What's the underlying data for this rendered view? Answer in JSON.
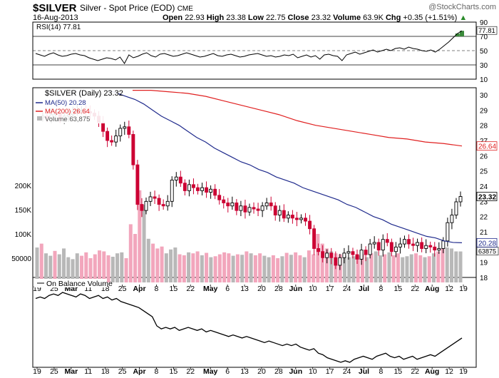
{
  "header": {
    "symbol": "$SILVER",
    "name": "Silver - Spot Price (EOD)",
    "exchange": "CME",
    "credit": "@StockCharts.com",
    "date": "16-Aug-2013",
    "open_label": "Open",
    "open": "22.93",
    "high_label": "High",
    "high": "23.38",
    "low_label": "Low",
    "low": "22.75",
    "close_label": "Close",
    "close": "23.32",
    "volume_label": "Volume",
    "volume": "63.9K",
    "chg_label": "Chg",
    "chg": "+0.35 (+1.51%)",
    "chg_arrow": "▲"
  },
  "colors": {
    "up": "#000000",
    "down": "#cc0033",
    "ma50": "#1f2a8c",
    "ma200": "#e02020",
    "volume_up": "#b8b8b8",
    "volume_down": "#f2a6bc",
    "rsi_fill_high": "#3a8a3a",
    "rsi_fill_low": "#7a4040",
    "grid": "#dddddd"
  },
  "panels": {
    "rsi_label": "RSI(14) 77.81",
    "main_label": "$SILVER (Daily) 23.32",
    "ma50_label": "MA(50) 20.28",
    "ma200_label": "MA(200) 26.64",
    "volume_label": "Volume 63,875",
    "obv_label": "On Balance Volume"
  },
  "x_axis_labels": [
    "19",
    "25",
    "Mar",
    "11",
    "18",
    "25",
    "Apr",
    "8",
    "15",
    "22",
    "May",
    "6",
    "13",
    "20",
    "28",
    "Jun",
    "10",
    "17",
    "24",
    "Jul",
    "8",
    "15",
    "22",
    "Aug",
    "12",
    "19"
  ],
  "chart_data": [
    {
      "type": "line",
      "name": "RSI(14)",
      "ylim": [
        10,
        90
      ],
      "y_ticks": [
        10,
        30,
        50,
        70,
        90
      ],
      "reference_lines": [
        30,
        50,
        70
      ],
      "current_value": 77.81,
      "values": [
        46,
        44,
        42,
        45,
        47,
        44,
        42,
        43,
        45,
        46,
        44,
        43,
        40,
        38,
        36,
        38,
        40,
        39,
        37,
        41,
        32,
        44,
        40,
        42,
        45,
        47,
        43,
        41,
        45,
        46,
        44,
        42,
        43,
        45,
        47,
        45,
        43,
        41,
        42,
        44,
        46,
        43,
        42,
        44,
        45,
        43,
        41,
        42,
        44,
        45,
        46,
        44,
        42,
        43,
        41,
        42,
        44,
        43,
        45,
        40,
        42,
        44,
        41,
        43,
        38,
        44,
        45,
        43,
        42,
        36,
        44,
        46,
        48,
        45,
        47,
        49,
        51,
        48,
        50,
        52,
        50,
        53,
        54,
        52,
        55,
        53,
        52,
        50,
        49,
        51,
        48,
        52,
        57,
        62,
        68,
        74,
        77.81
      ]
    },
    {
      "type": "candlestick",
      "name": "$SILVER (Daily)",
      "ylim": [
        18,
        30
      ],
      "y_ticks": [
        18,
        19,
        20,
        21,
        22,
        23,
        24,
        25,
        26,
        27,
        28,
        29,
        30
      ],
      "last_close": 23.32,
      "closes": [
        28.6,
        28.5,
        28.7,
        28.8,
        28.4,
        28.6,
        28.7,
        28.9,
        29.0,
        29.0,
        28.9,
        28.8,
        28.6,
        28.2,
        27.6,
        27.0,
        26.9,
        27.3,
        27.8,
        27.9,
        27.4,
        25.4,
        22.8,
        22.4,
        23.0,
        23.3,
        23.2,
        22.8,
        22.7,
        23.0,
        24.4,
        24.6,
        24.2,
        23.7,
        24.1,
        23.9,
        23.7,
        23.9,
        23.6,
        23.8,
        23.4,
        23.1,
        22.9,
        22.7,
        22.9,
        22.4,
        22.7,
        22.3,
        22.6,
        22.5,
        22.4,
        22.7,
        22.9,
        22.7,
        22.1,
        22.4,
        21.9,
        22.1,
        21.9,
        21.8,
        21.9,
        21.7,
        21.2,
        19.9,
        19.7,
        19.3,
        19.6,
        19.3,
        18.8,
        19.3,
        19.6,
        19.7,
        19.5,
        19.2,
        19.8,
        19.5,
        20.2,
        20.3,
        19.8,
        20.5,
        20.3,
        19.7,
        20.0,
        20.2,
        20.5,
        20.2,
        20.1,
        20.3,
        19.9,
        20.1,
        20.0,
        19.8,
        19.9,
        20.4,
        21.6,
        22.1,
        22.97,
        23.32
      ],
      "ma50_label_value": 20.28,
      "ma200_label_value": 26.64,
      "ma50": [
        30.3,
        30.1,
        29.9,
        29.7,
        29.4,
        29.0,
        28.6,
        28.3,
        28.0,
        27.6,
        27.2,
        26.9,
        26.5,
        26.2,
        25.9,
        25.6,
        25.4,
        25.1,
        24.9,
        24.6,
        24.4,
        24.2,
        23.9,
        23.7,
        23.5,
        23.3,
        23.1,
        22.8,
        22.6,
        22.3,
        22.0,
        21.8,
        21.5,
        21.3,
        21.1,
        20.9,
        20.7,
        20.6,
        20.4,
        20.3,
        20.28
      ],
      "ma200": [
        30.3,
        30.3,
        30.2,
        30.1,
        29.9,
        29.6,
        29.3,
        29.0,
        28.7,
        28.3,
        28.0,
        27.8,
        27.6,
        27.4,
        27.2,
        27.1,
        26.9,
        26.8,
        26.64
      ]
    },
    {
      "type": "bar",
      "name": "Volume",
      "ylim": [
        0,
        250000
      ],
      "y_ticks": [
        50000,
        100000,
        150000,
        200000
      ],
      "y_tick_labels": [
        "50000",
        "100K",
        "150K",
        "200K"
      ],
      "last_value": 63875,
      "values": [
        72000,
        80000,
        60000,
        55000,
        65000,
        58000,
        70000,
        52000,
        48000,
        60000,
        55000,
        62000,
        50000,
        58000,
        66000,
        64000,
        56000,
        53000,
        60000,
        62000,
        50000,
        120000,
        100000,
        190000,
        160000,
        90000,
        80000,
        70000,
        74000,
        60000,
        68000,
        72000,
        58000,
        56000,
        62000,
        60000,
        64000,
        56000,
        61000,
        52000,
        54000,
        58000,
        62000,
        60000,
        55000,
        58000,
        57000,
        64000,
        60000,
        56000,
        60000,
        55000,
        52000,
        56000,
        50000,
        54000,
        61000,
        57000,
        62000,
        56000,
        52000,
        66000,
        58000,
        100000,
        80000,
        70000,
        64000,
        60000,
        58000,
        55000,
        52000,
        54000,
        56000,
        58000,
        52000,
        60000,
        64000,
        56000,
        58000,
        62000,
        56000,
        60000,
        52000,
        54000,
        58000,
        60000,
        56000,
        52000,
        54000,
        60000,
        64000,
        70000,
        72000,
        70000,
        64000,
        63875
      ]
    },
    {
      "type": "line",
      "name": "On Balance Volume",
      "values": [
        100,
        101,
        100,
        102,
        103,
        102,
        104,
        103,
        102,
        101,
        103,
        102,
        100,
        101,
        102,
        100,
        101,
        99,
        100,
        98,
        97,
        96,
        95,
        94,
        92,
        90,
        88,
        82,
        80,
        81,
        80,
        81,
        79,
        80,
        81,
        80,
        79,
        80,
        78,
        79,
        78,
        77,
        76,
        75,
        76,
        75,
        74,
        75,
        74,
        73,
        72,
        71,
        72,
        71,
        70,
        69,
        70,
        69,
        70,
        68,
        67,
        66,
        67,
        64,
        63,
        61,
        60,
        59,
        58,
        59,
        58,
        60,
        61,
        62,
        61,
        60,
        62,
        63,
        64,
        62,
        61,
        62,
        60,
        61,
        62,
        60,
        61,
        62,
        63,
        62,
        64,
        66,
        68,
        70,
        72,
        74
      ]
    }
  ]
}
